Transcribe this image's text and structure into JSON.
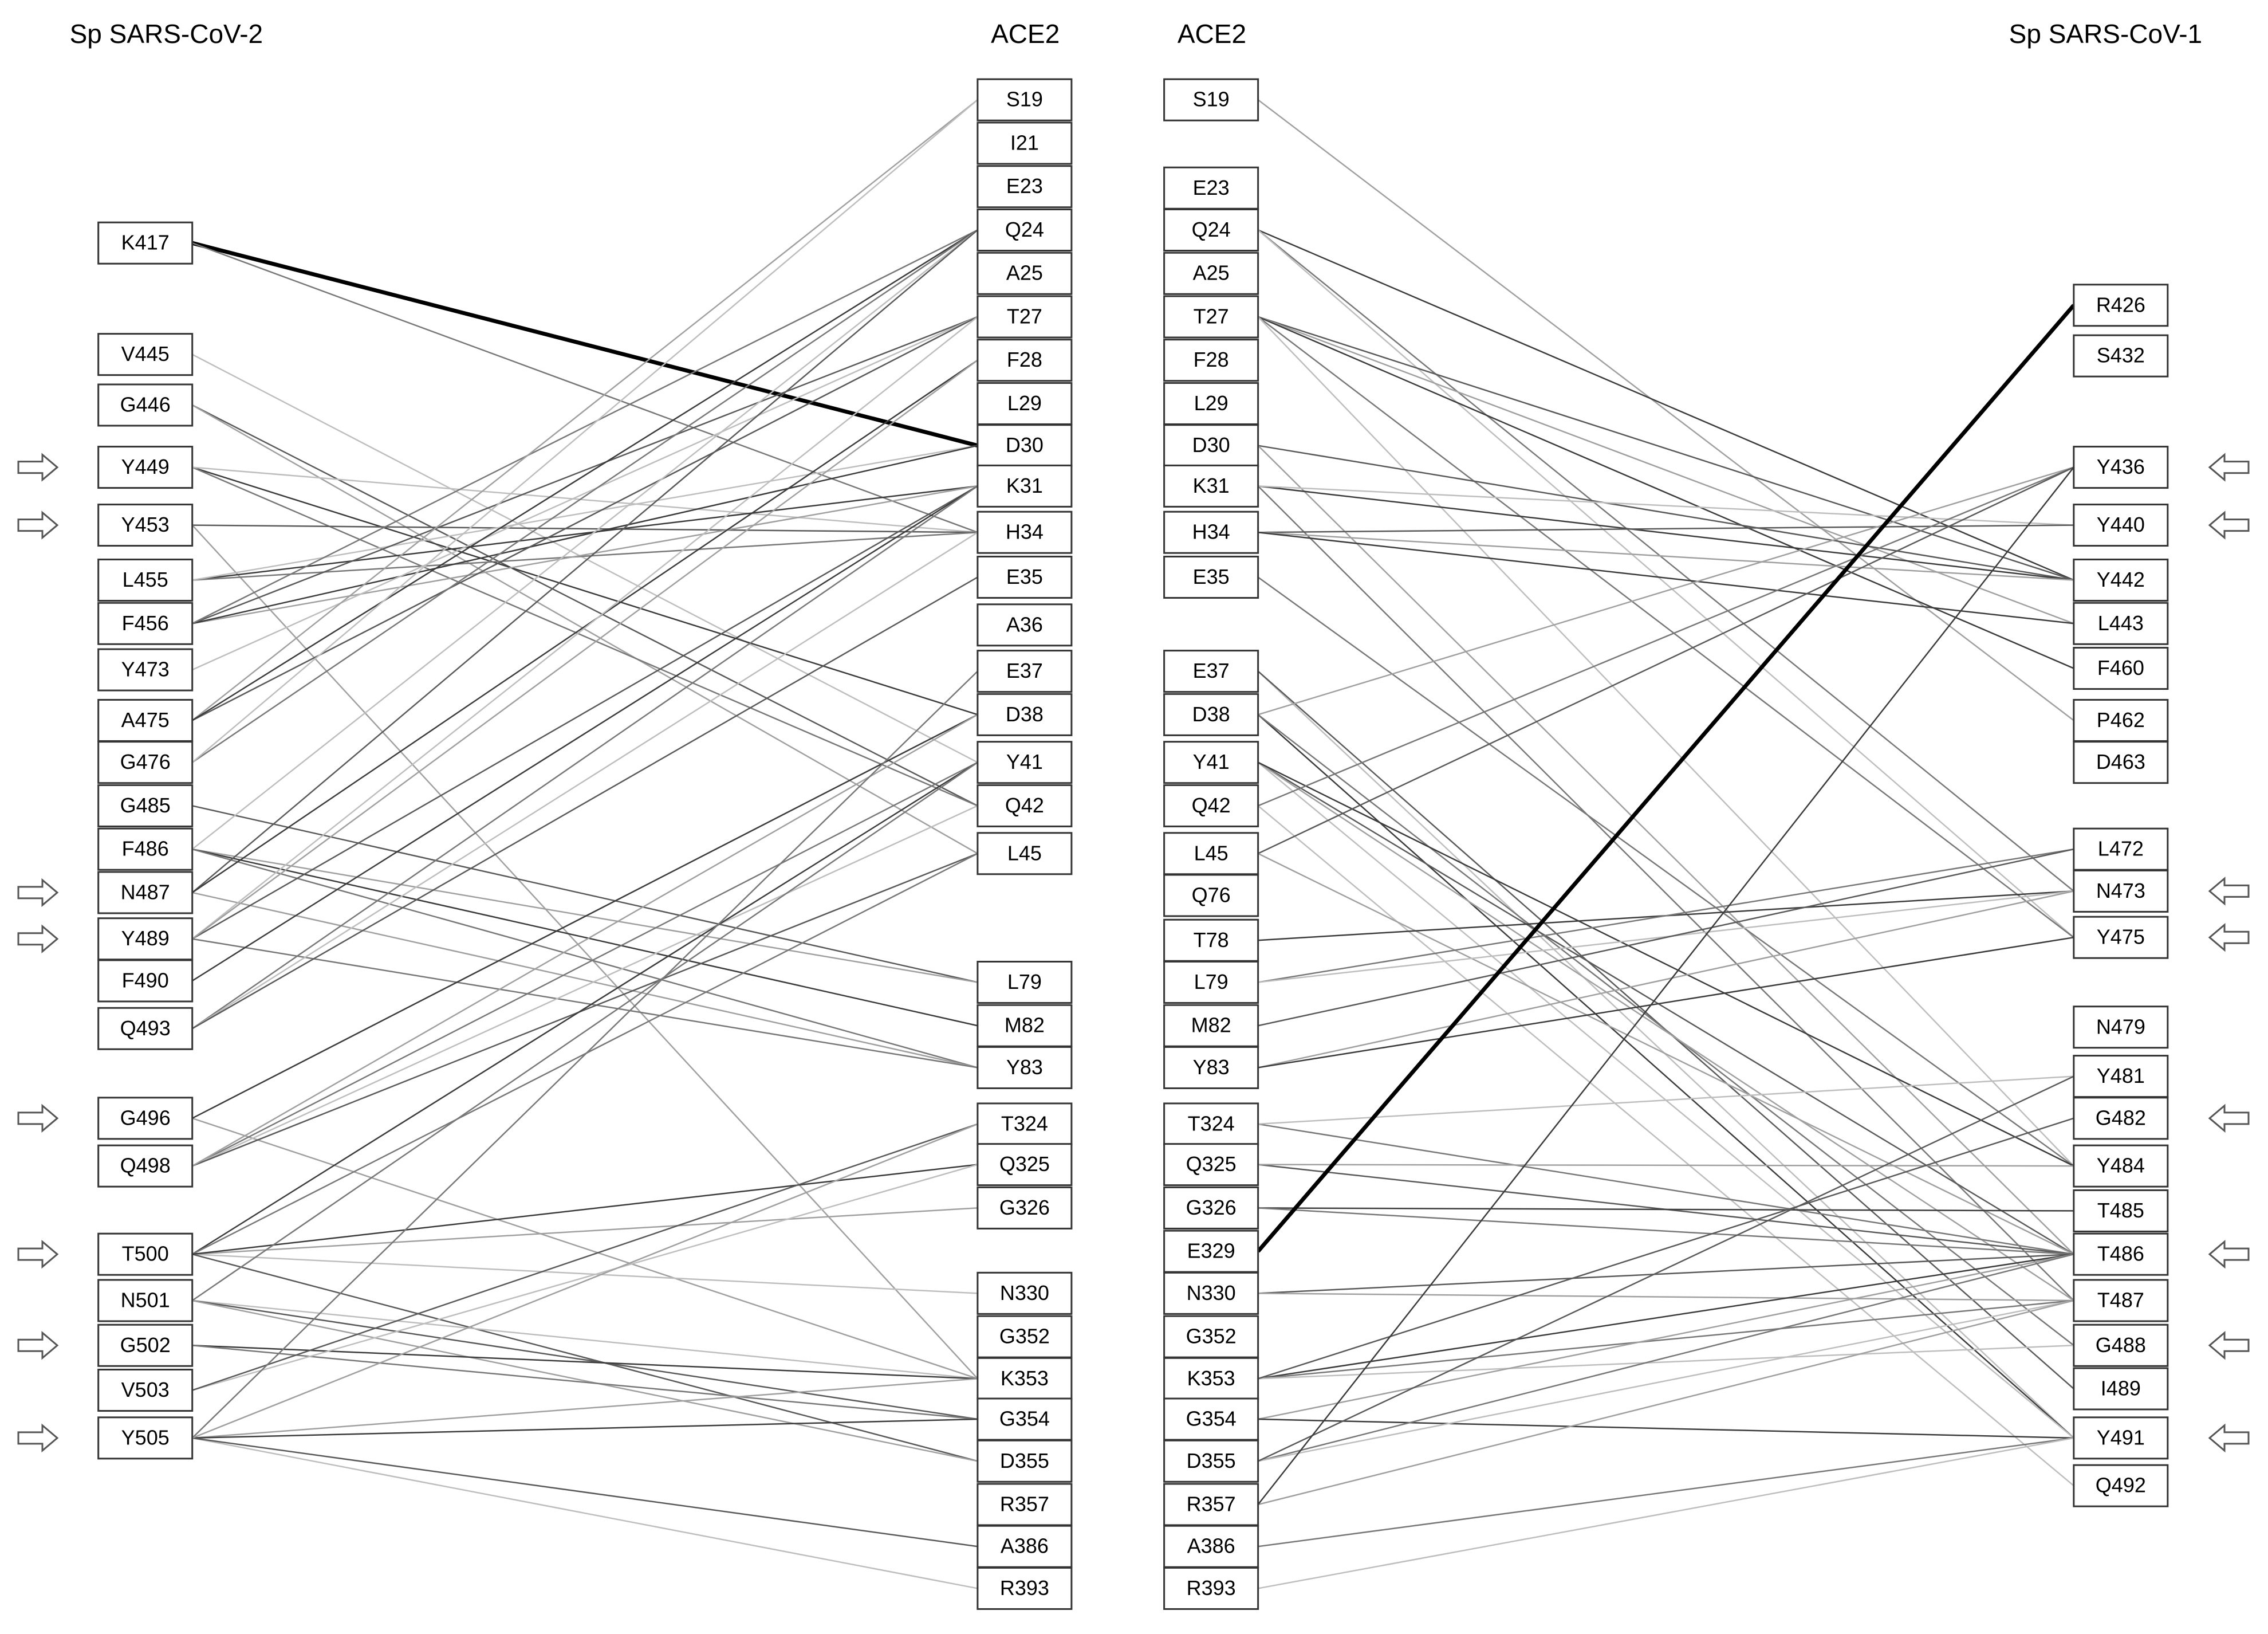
{
  "columns": [
    {
      "title": "Sp SARS-CoV-2",
      "nodes": [
        {
          "label": "K417",
          "color": "#00b0f0"
        },
        {
          "label": "V445"
        },
        {
          "label": "G446"
        },
        {
          "label": "Y449",
          "arrow": true
        },
        {
          "label": "Y453",
          "arrow": true
        },
        {
          "label": "L455"
        },
        {
          "label": "F456"
        },
        {
          "label": "Y473"
        },
        {
          "label": "A475"
        },
        {
          "label": "G476"
        },
        {
          "label": "G485"
        },
        {
          "label": "F486"
        },
        {
          "label": "N487",
          "arrow": true
        },
        {
          "label": "Y489",
          "arrow": true
        },
        {
          "label": "F490"
        },
        {
          "label": "Q493"
        },
        {
          "label": "G496",
          "arrow": true
        },
        {
          "label": "Q498"
        },
        {
          "label": "T500",
          "arrow": true
        },
        {
          "label": "N501"
        },
        {
          "label": "G502",
          "arrow": true
        },
        {
          "label": "V503"
        },
        {
          "label": "Y505",
          "arrow": true
        }
      ]
    },
    {
      "title": "ACE2",
      "nodes": [
        {
          "label": "S19"
        },
        {
          "label": "I21"
        },
        {
          "label": "E23",
          "color": "#ff0000"
        },
        {
          "label": "Q24"
        },
        {
          "label": "A25"
        },
        {
          "label": "T27"
        },
        {
          "label": "F28"
        },
        {
          "label": "L29"
        },
        {
          "label": "D30",
          "color": "#ff0000"
        },
        {
          "label": "K31",
          "color": "#00b0f0"
        },
        {
          "label": "H34",
          "color": "#00b0f0"
        },
        {
          "label": "E35",
          "color": "#ff0000"
        },
        {
          "label": "A36"
        },
        {
          "label": "E37",
          "color": "#ff0000"
        },
        {
          "label": "D38",
          "color": "#ff0000"
        },
        {
          "label": "Y41"
        },
        {
          "label": "Q42"
        },
        {
          "label": "L45"
        },
        {
          "label": "L79"
        },
        {
          "label": "M82"
        },
        {
          "label": "Y83"
        },
        {
          "label": "T324"
        },
        {
          "label": "Q325"
        },
        {
          "label": "G326"
        },
        {
          "label": "N330"
        },
        {
          "label": "G352"
        },
        {
          "label": "K353",
          "color": "#00b0f0"
        },
        {
          "label": "G354"
        },
        {
          "label": "D355",
          "color": "#ff0000"
        },
        {
          "label": "R357",
          "color": "#00b0f0"
        },
        {
          "label": "A386"
        },
        {
          "label": "R393",
          "color": "#00b0f0"
        }
      ]
    },
    {
      "title": "ACE2",
      "nodes": [
        {
          "label": "S19"
        },
        {
          "label": "E23",
          "color": "#ff0000"
        },
        {
          "label": "Q24"
        },
        {
          "label": "A25"
        },
        {
          "label": "T27"
        },
        {
          "label": "F28"
        },
        {
          "label": "L29"
        },
        {
          "label": "D30",
          "color": "#ff0000"
        },
        {
          "label": "K31",
          "color": "#00b0f0"
        },
        {
          "label": "H34",
          "color": "#00b0f0"
        },
        {
          "label": "E35",
          "color": "#ff0000"
        },
        {
          "label": "E37",
          "color": "#ff0000"
        },
        {
          "label": "D38",
          "color": "#ff0000"
        },
        {
          "label": "Y41"
        },
        {
          "label": "Q42"
        },
        {
          "label": "L45"
        },
        {
          "label": "Q76"
        },
        {
          "label": "T78"
        },
        {
          "label": "L79"
        },
        {
          "label": "M82"
        },
        {
          "label": "Y83"
        },
        {
          "label": "T324"
        },
        {
          "label": "Q325"
        },
        {
          "label": "G326"
        },
        {
          "label": "E329",
          "color": "#ff0000"
        },
        {
          "label": "N330"
        },
        {
          "label": "G352"
        },
        {
          "label": "K353",
          "color": "#00b0f0"
        },
        {
          "label": "G354"
        },
        {
          "label": "D355",
          "color": "#ff0000"
        },
        {
          "label": "R357",
          "color": "#00b0f0"
        },
        {
          "label": "A386"
        },
        {
          "label": "R393",
          "color": "#00b0f0"
        }
      ]
    },
    {
      "title": "Sp SARS-CoV-1",
      "nodes": [
        {
          "label": "R426",
          "color": "#00b0f0"
        },
        {
          "label": "S432"
        },
        {
          "label": "Y436",
          "arrow": true
        },
        {
          "label": "Y440",
          "arrow": true
        },
        {
          "label": "Y442"
        },
        {
          "label": "L443"
        },
        {
          "label": "F460"
        },
        {
          "label": "P462"
        },
        {
          "label": "D463",
          "color": "#ff0000"
        },
        {
          "label": "L472"
        },
        {
          "label": "N473",
          "arrow": true
        },
        {
          "label": "Y475",
          "arrow": true
        },
        {
          "label": "N479"
        },
        {
          "label": "Y481"
        },
        {
          "label": "G482",
          "arrow": true
        },
        {
          "label": "Y484"
        },
        {
          "label": "T485"
        },
        {
          "label": "T486",
          "arrow": true
        },
        {
          "label": "T487"
        },
        {
          "label": "G488",
          "arrow": true
        },
        {
          "label": "I489"
        },
        {
          "label": "Y491",
          "arrow": true
        },
        {
          "label": "Q492"
        }
      ]
    }
  ],
  "links": [
    {
      "between": [
        0,
        1
      ],
      "pairs": [
        [
          "K417",
          "D30",
          true
        ],
        [
          "K417",
          "H34"
        ],
        [
          "V445",
          "Y41"
        ],
        [
          "G446",
          "Q42"
        ],
        [
          "G446",
          "L45"
        ],
        [
          "Y449",
          "D38"
        ],
        [
          "Y449",
          "Q42"
        ],
        [
          "Y449",
          "H34"
        ],
        [
          "Y453",
          "H34"
        ],
        [
          "Y453",
          "K353"
        ],
        [
          "L455",
          "K31"
        ],
        [
          "L455",
          "H34"
        ],
        [
          "L455",
          "D30"
        ],
        [
          "F456",
          "T27"
        ],
        [
          "F456",
          "K31"
        ],
        [
          "F456",
          "D30"
        ],
        [
          "F456",
          "Q24"
        ],
        [
          "Y473",
          "T27"
        ],
        [
          "A475",
          "T27"
        ],
        [
          "A475",
          "S19"
        ],
        [
          "A475",
          "Q24"
        ],
        [
          "G476",
          "Q24"
        ],
        [
          "G476",
          "S19"
        ],
        [
          "G485",
          "L79"
        ],
        [
          "F486",
          "L79"
        ],
        [
          "F486",
          "M82"
        ],
        [
          "F486",
          "Y83"
        ],
        [
          "F486",
          "Q24"
        ],
        [
          "N487",
          "Q24"
        ],
        [
          "N487",
          "Y83"
        ],
        [
          "N487",
          "F28"
        ],
        [
          "Y489",
          "Y83"
        ],
        [
          "Y489",
          "T27"
        ],
        [
          "Y489",
          "K31"
        ],
        [
          "Y489",
          "F28"
        ],
        [
          "F490",
          "K31"
        ],
        [
          "Q493",
          "K31"
        ],
        [
          "Q493",
          "H34"
        ],
        [
          "Q493",
          "E35"
        ],
        [
          "G496",
          "K353"
        ],
        [
          "G496",
          "D38"
        ],
        [
          "Q498",
          "Y41"
        ],
        [
          "Q498",
          "Q42"
        ],
        [
          "Q498",
          "L45"
        ],
        [
          "Q498",
          "D38"
        ],
        [
          "T500",
          "Y41"
        ],
        [
          "T500",
          "L45"
        ],
        [
          "T500",
          "N330"
        ],
        [
          "T500",
          "D355"
        ],
        [
          "T500",
          "G326"
        ],
        [
          "T500",
          "Q325"
        ],
        [
          "N501",
          "Y41"
        ],
        [
          "N501",
          "K353"
        ],
        [
          "N501",
          "G354"
        ],
        [
          "N501",
          "D355"
        ],
        [
          "G502",
          "K353"
        ],
        [
          "G502",
          "G354"
        ],
        [
          "V503",
          "Q325"
        ],
        [
          "V503",
          "T324"
        ],
        [
          "Y505",
          "K353"
        ],
        [
          "Y505",
          "G354"
        ],
        [
          "Y505",
          "E37"
        ],
        [
          "Y505",
          "R393"
        ],
        [
          "Y505",
          "A386"
        ],
        [
          "Y505",
          "T324"
        ]
      ]
    },
    {
      "between": [
        2,
        3
      ],
      "pairs": [
        [
          "S19",
          "P462"
        ],
        [
          "Q24",
          "Y442"
        ],
        [
          "Q24",
          "N473"
        ],
        [
          "Q24",
          "Y475"
        ],
        [
          "T27",
          "Y442"
        ],
        [
          "T27",
          "L443"
        ],
        [
          "T27",
          "F460"
        ],
        [
          "T27",
          "Y475"
        ],
        [
          "T27",
          "Y484"
        ],
        [
          "D30",
          "Y442"
        ],
        [
          "D30",
          "T486"
        ],
        [
          "K31",
          "Y442"
        ],
        [
          "K31",
          "T487"
        ],
        [
          "K31",
          "Y440"
        ],
        [
          "H34",
          "Y440"
        ],
        [
          "H34",
          "Y442"
        ],
        [
          "H34",
          "L443"
        ],
        [
          "E35",
          "Y484"
        ],
        [
          "E37",
          "Y491"
        ],
        [
          "E37",
          "I489"
        ],
        [
          "D38",
          "Y436"
        ],
        [
          "D38",
          "Y491"
        ],
        [
          "D38",
          "G488"
        ],
        [
          "Y41",
          "Y491"
        ],
        [
          "Y41",
          "T486"
        ],
        [
          "Y41",
          "T487"
        ],
        [
          "Y41",
          "Y484"
        ],
        [
          "Q42",
          "Y436"
        ],
        [
          "Q42",
          "Q492"
        ],
        [
          "L45",
          "Y436"
        ],
        [
          "L45",
          "T486"
        ],
        [
          "T78",
          "N473"
        ],
        [
          "L79",
          "L472"
        ],
        [
          "L79",
          "N473"
        ],
        [
          "M82",
          "L472"
        ],
        [
          "Y83",
          "N473"
        ],
        [
          "Y83",
          "Y475"
        ],
        [
          "T324",
          "T486"
        ],
        [
          "T324",
          "Y481"
        ],
        [
          "Q325",
          "T486"
        ],
        [
          "Q325",
          "Y484"
        ],
        [
          "G326",
          "T485"
        ],
        [
          "G326",
          "T486"
        ],
        [
          "E329",
          "R426",
          true
        ],
        [
          "N330",
          "T486"
        ],
        [
          "N330",
          "T487"
        ],
        [
          "K353",
          "T486"
        ],
        [
          "K353",
          "T487"
        ],
        [
          "K353",
          "G488"
        ],
        [
          "K353",
          "G482"
        ],
        [
          "G354",
          "T486"
        ],
        [
          "G354",
          "Y491"
        ],
        [
          "D355",
          "T486"
        ],
        [
          "D355",
          "T487"
        ],
        [
          "D355",
          "Y481"
        ],
        [
          "R357",
          "T487"
        ],
        [
          "R357",
          "Y436"
        ],
        [
          "A386",
          "Y491"
        ],
        [
          "R393",
          "Y491"
        ]
      ]
    }
  ]
}
